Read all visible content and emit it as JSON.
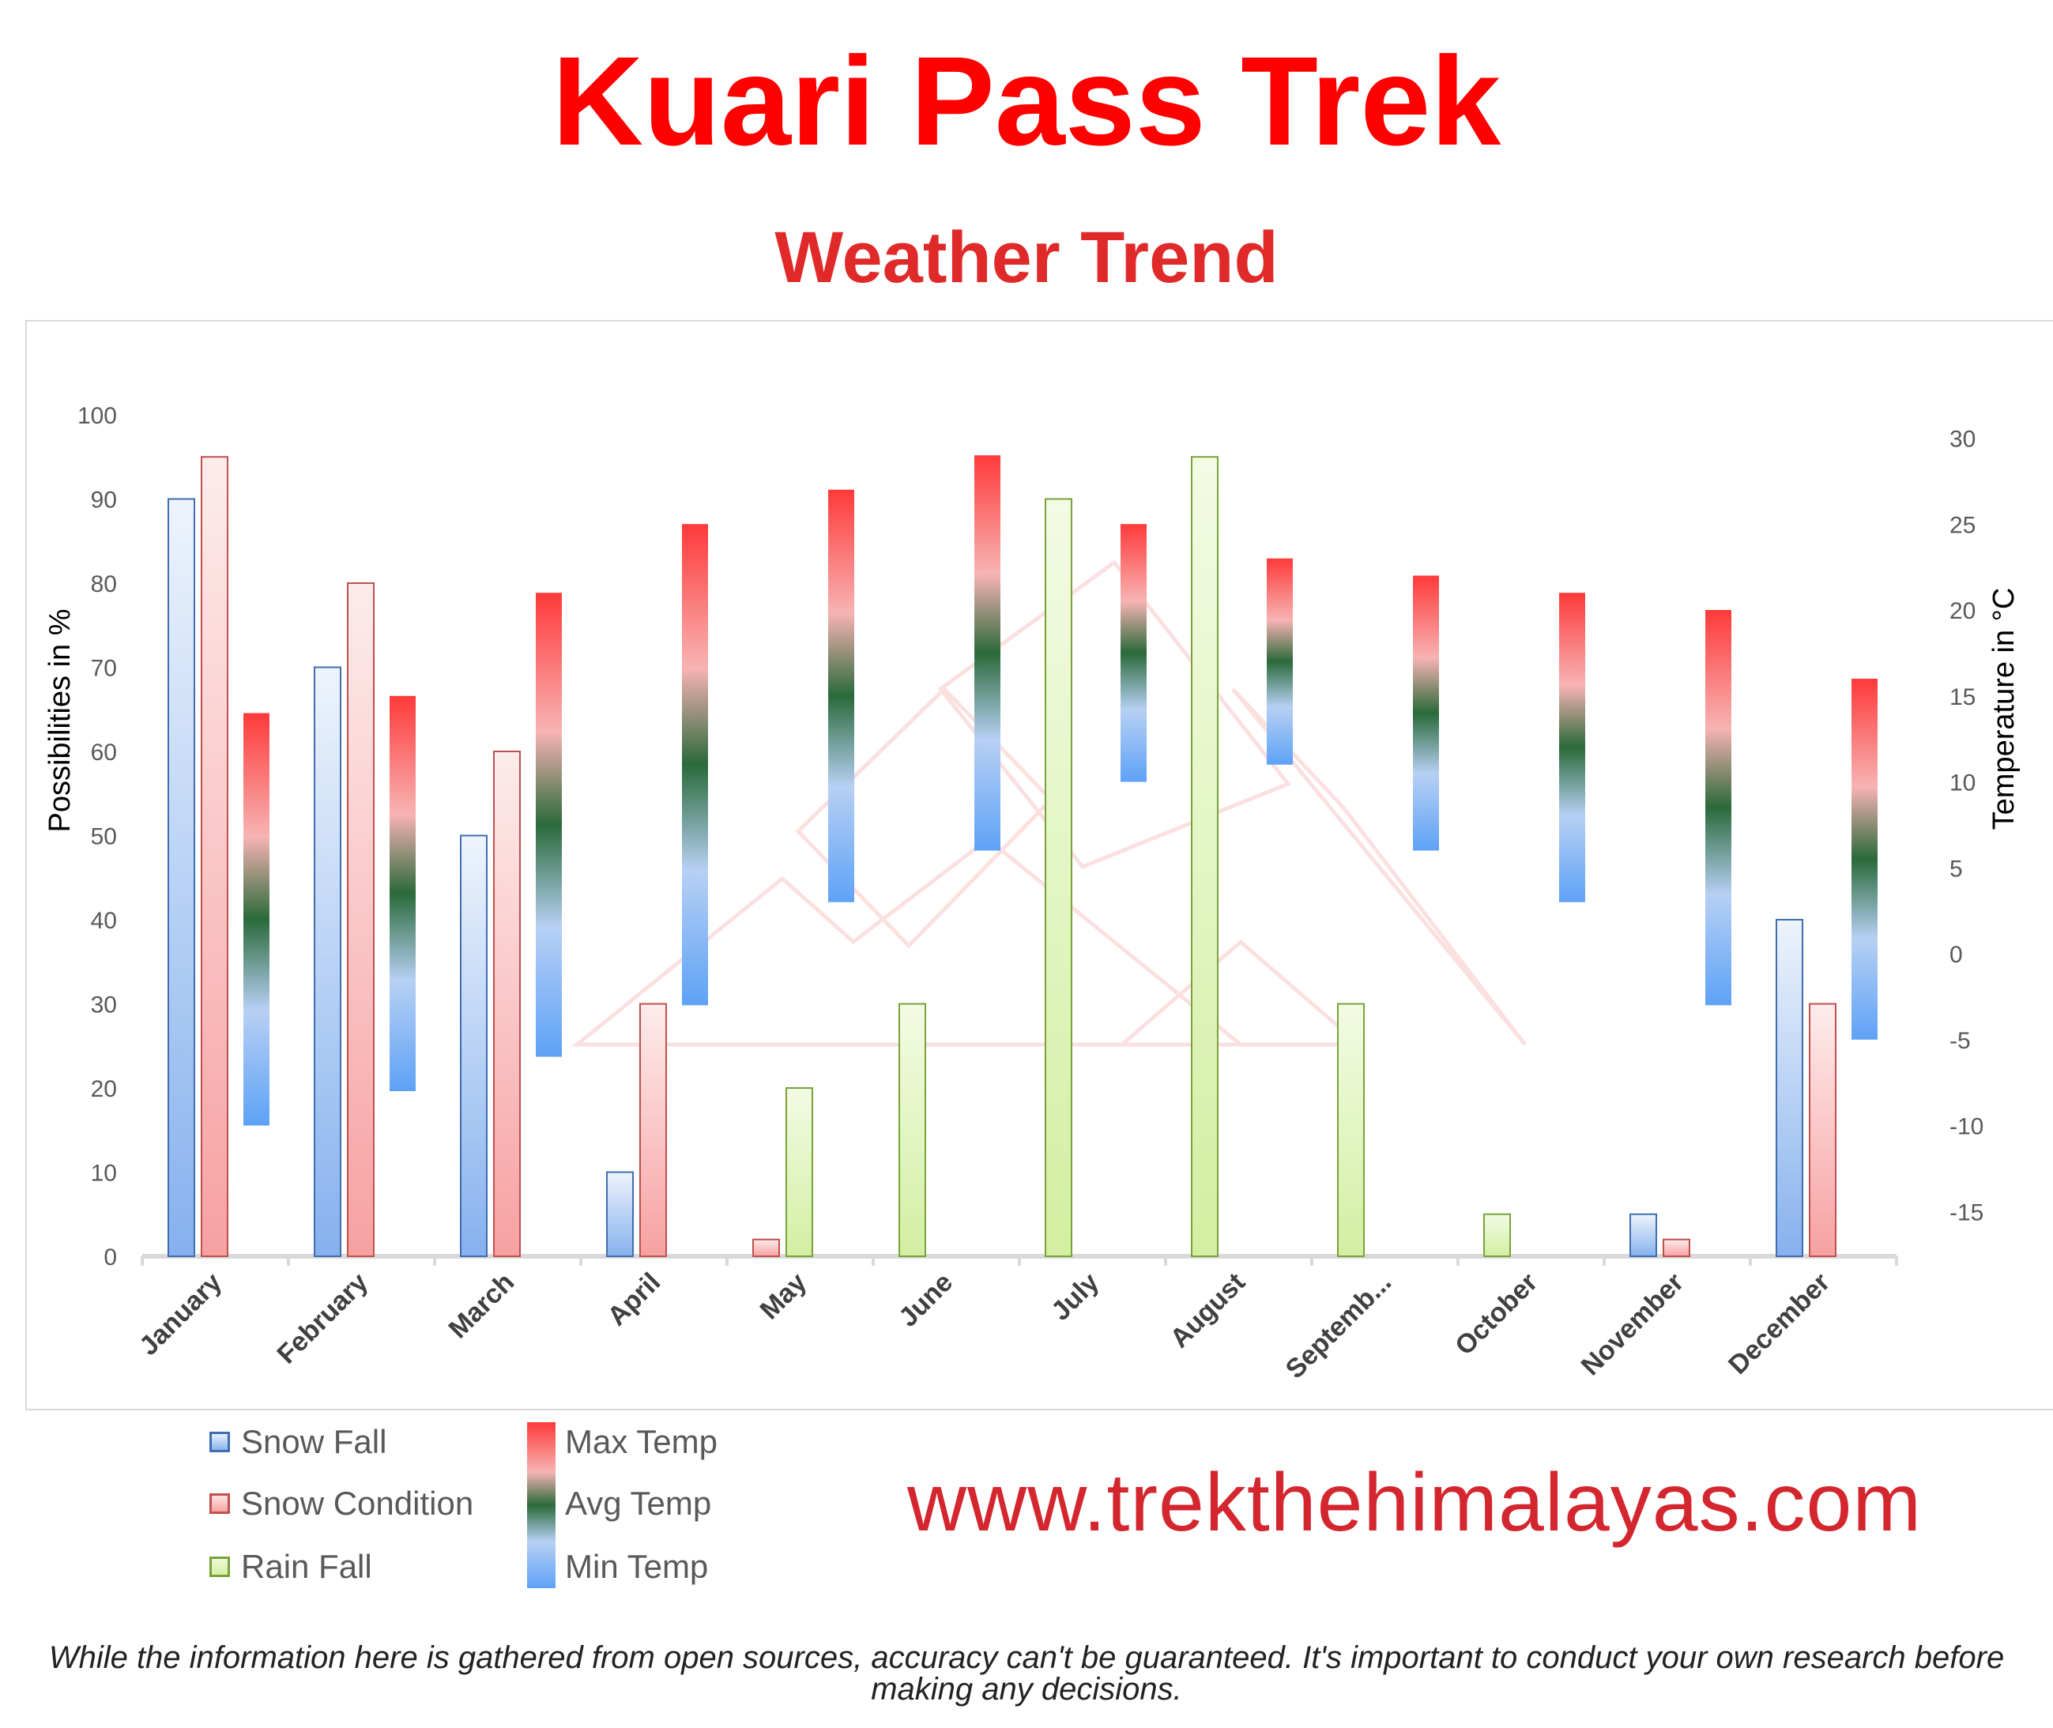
{
  "header": {
    "title": "Kuari Pass Trek",
    "subtitle": "Weather Trend"
  },
  "chart_data": {
    "type": "bar",
    "categories": [
      "January",
      "February",
      "March",
      "April",
      "May",
      "June",
      "July",
      "August",
      "Septemb...",
      "October",
      "November",
      "December"
    ],
    "ylabel_left": "Possibilities in %",
    "ylabel_right": "Temperature in °C",
    "ylim_left": [
      0,
      100
    ],
    "ylim_right": [
      -15,
      30
    ],
    "left_ticks": [
      0,
      10,
      20,
      30,
      40,
      50,
      60,
      70,
      80,
      90,
      100
    ],
    "right_ticks": [
      -15,
      -10,
      -5,
      0,
      5,
      10,
      15,
      20,
      25,
      30
    ],
    "grid": false,
    "series": [
      {
        "name": "Snow Fall",
        "axis": "left",
        "color": "#3f6db0",
        "values": [
          90,
          70,
          50,
          10,
          null,
          null,
          null,
          null,
          null,
          null,
          5,
          40
        ]
      },
      {
        "name": "Snow Condition",
        "axis": "left",
        "color": "#c0504d",
        "values": [
          95,
          80,
          60,
          30,
          2,
          null,
          null,
          null,
          null,
          null,
          2,
          30
        ]
      },
      {
        "name": "Rain Fall",
        "axis": "left",
        "color": "#79a33a",
        "values": [
          null,
          null,
          null,
          null,
          20,
          30,
          90,
          95,
          30,
          5,
          null,
          null
        ]
      }
    ],
    "temperature_ranges": {
      "names": {
        "max": "Max Temp",
        "avg": "Avg Temp",
        "min": "Min Temp"
      },
      "colors": {
        "max": "#ff3a3a",
        "avg": "#2a6a3a",
        "min": "#5ea2f6"
      },
      "max": [
        14,
        15,
        21,
        25,
        27,
        29,
        25,
        23,
        22,
        21,
        20,
        16
      ],
      "min": [
        -10,
        -8,
        -6,
        -3,
        3,
        6,
        10,
        11,
        6,
        3,
        -3,
        -5
      ]
    }
  },
  "legend": {
    "snow_fall": "Snow Fall",
    "snow_condition": "Snow Condition",
    "rain_fall": "Rain Fall",
    "max_temp": "Max Temp",
    "avg_temp": "Avg Temp",
    "min_temp": "Min Temp"
  },
  "footer": {
    "url": "www.trekthehimalayas.com",
    "disclaimer": "While the information here is gathered from open sources, accuracy can't be guaranteed. It's important to conduct your own research before making any decisions."
  }
}
